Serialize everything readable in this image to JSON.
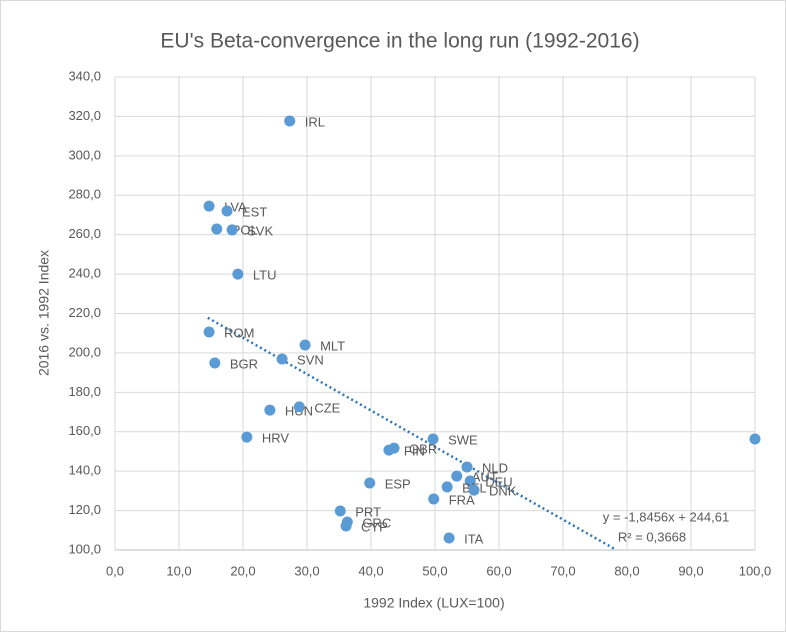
{
  "chart_data": {
    "type": "scatter",
    "title": "EU's Beta-convergence in the long run (1992-2016)",
    "xlabel": "1992 Index (LUX=100)",
    "ylabel": "2016 vs. 1992 Index",
    "color": "#5b9bd5",
    "point_labels": [
      "IRL",
      "LVA",
      "EST",
      "POL",
      "SVK",
      "LTU",
      "ROM",
      "MLT",
      "BGR",
      "SVN",
      "HUN",
      "CZE",
      "HRV",
      "SWE",
      "FIN",
      "GBR",
      null,
      "NLD",
      "AUT",
      "DEU",
      "BEL",
      "DNK",
      "FRA",
      "ESP",
      "PRT",
      "GRC",
      "CYP",
      "ITA"
    ],
    "x": [
      27.3,
      14.7,
      17.5,
      15.9,
      18.3,
      19.2,
      14.7,
      29.7,
      15.6,
      26.1,
      24.2,
      28.8,
      20.6,
      49.7,
      42.8,
      43.6,
      100,
      55.0,
      53.4,
      55.5,
      51.9,
      56.1,
      49.8,
      39.8,
      35.2,
      36.3,
      36.1,
      52.2
    ],
    "values": [
      317.7,
      274.5,
      272.0,
      262.9,
      262.4,
      240.0,
      210.6,
      204.0,
      194.9,
      196.9,
      171.0,
      172.6,
      157.3,
      156.3,
      150.7,
      151.7,
      156.3,
      142.1,
      137.5,
      135.0,
      132.0,
      130.4,
      125.9,
      134.0,
      119.8,
      114.2,
      112.2,
      106.1
    ],
    "xlim": [
      0,
      100
    ],
    "xticks": [
      {
        "value": 0,
        "label": "0,0"
      },
      {
        "value": 10,
        "label": "10,0"
      },
      {
        "value": 20,
        "label": "20,0"
      },
      {
        "value": 30,
        "label": "30,0"
      },
      {
        "value": 40,
        "label": "40,0"
      },
      {
        "value": 50,
        "label": "50,0"
      },
      {
        "value": 60,
        "label": "60,0"
      },
      {
        "value": 70,
        "label": "70,0"
      },
      {
        "value": 80,
        "label": "80,0"
      },
      {
        "value": 90,
        "label": "90,0"
      },
      {
        "value": 100,
        "label": "100,0"
      }
    ],
    "ylim": [
      100,
      340
    ],
    "yticks": [
      {
        "value": 100,
        "label": "100,0"
      },
      {
        "value": 120,
        "label": "120,0"
      },
      {
        "value": 140,
        "label": "140,0"
      },
      {
        "value": 160,
        "label": "160,0"
      },
      {
        "value": 180,
        "label": "180,0"
      },
      {
        "value": 200,
        "label": "200,0"
      },
      {
        "value": 220,
        "label": "220,0"
      },
      {
        "value": 240,
        "label": "240,0"
      },
      {
        "value": 260,
        "label": "260,0"
      },
      {
        "value": 280,
        "label": "280,0"
      },
      {
        "value": 300,
        "label": "300,0"
      },
      {
        "value": 320,
        "label": "320,0"
      },
      {
        "value": 340,
        "label": "340,0"
      }
    ],
    "grid": true,
    "trendline": {
      "label": "y = -1,8456x + 244,61",
      "r2_label": "R² = 0,3668",
      "slope": -1.8456,
      "intercept": 244.61,
      "x": [
        14.5,
        78
      ],
      "color": "#2e75b6"
    }
  }
}
